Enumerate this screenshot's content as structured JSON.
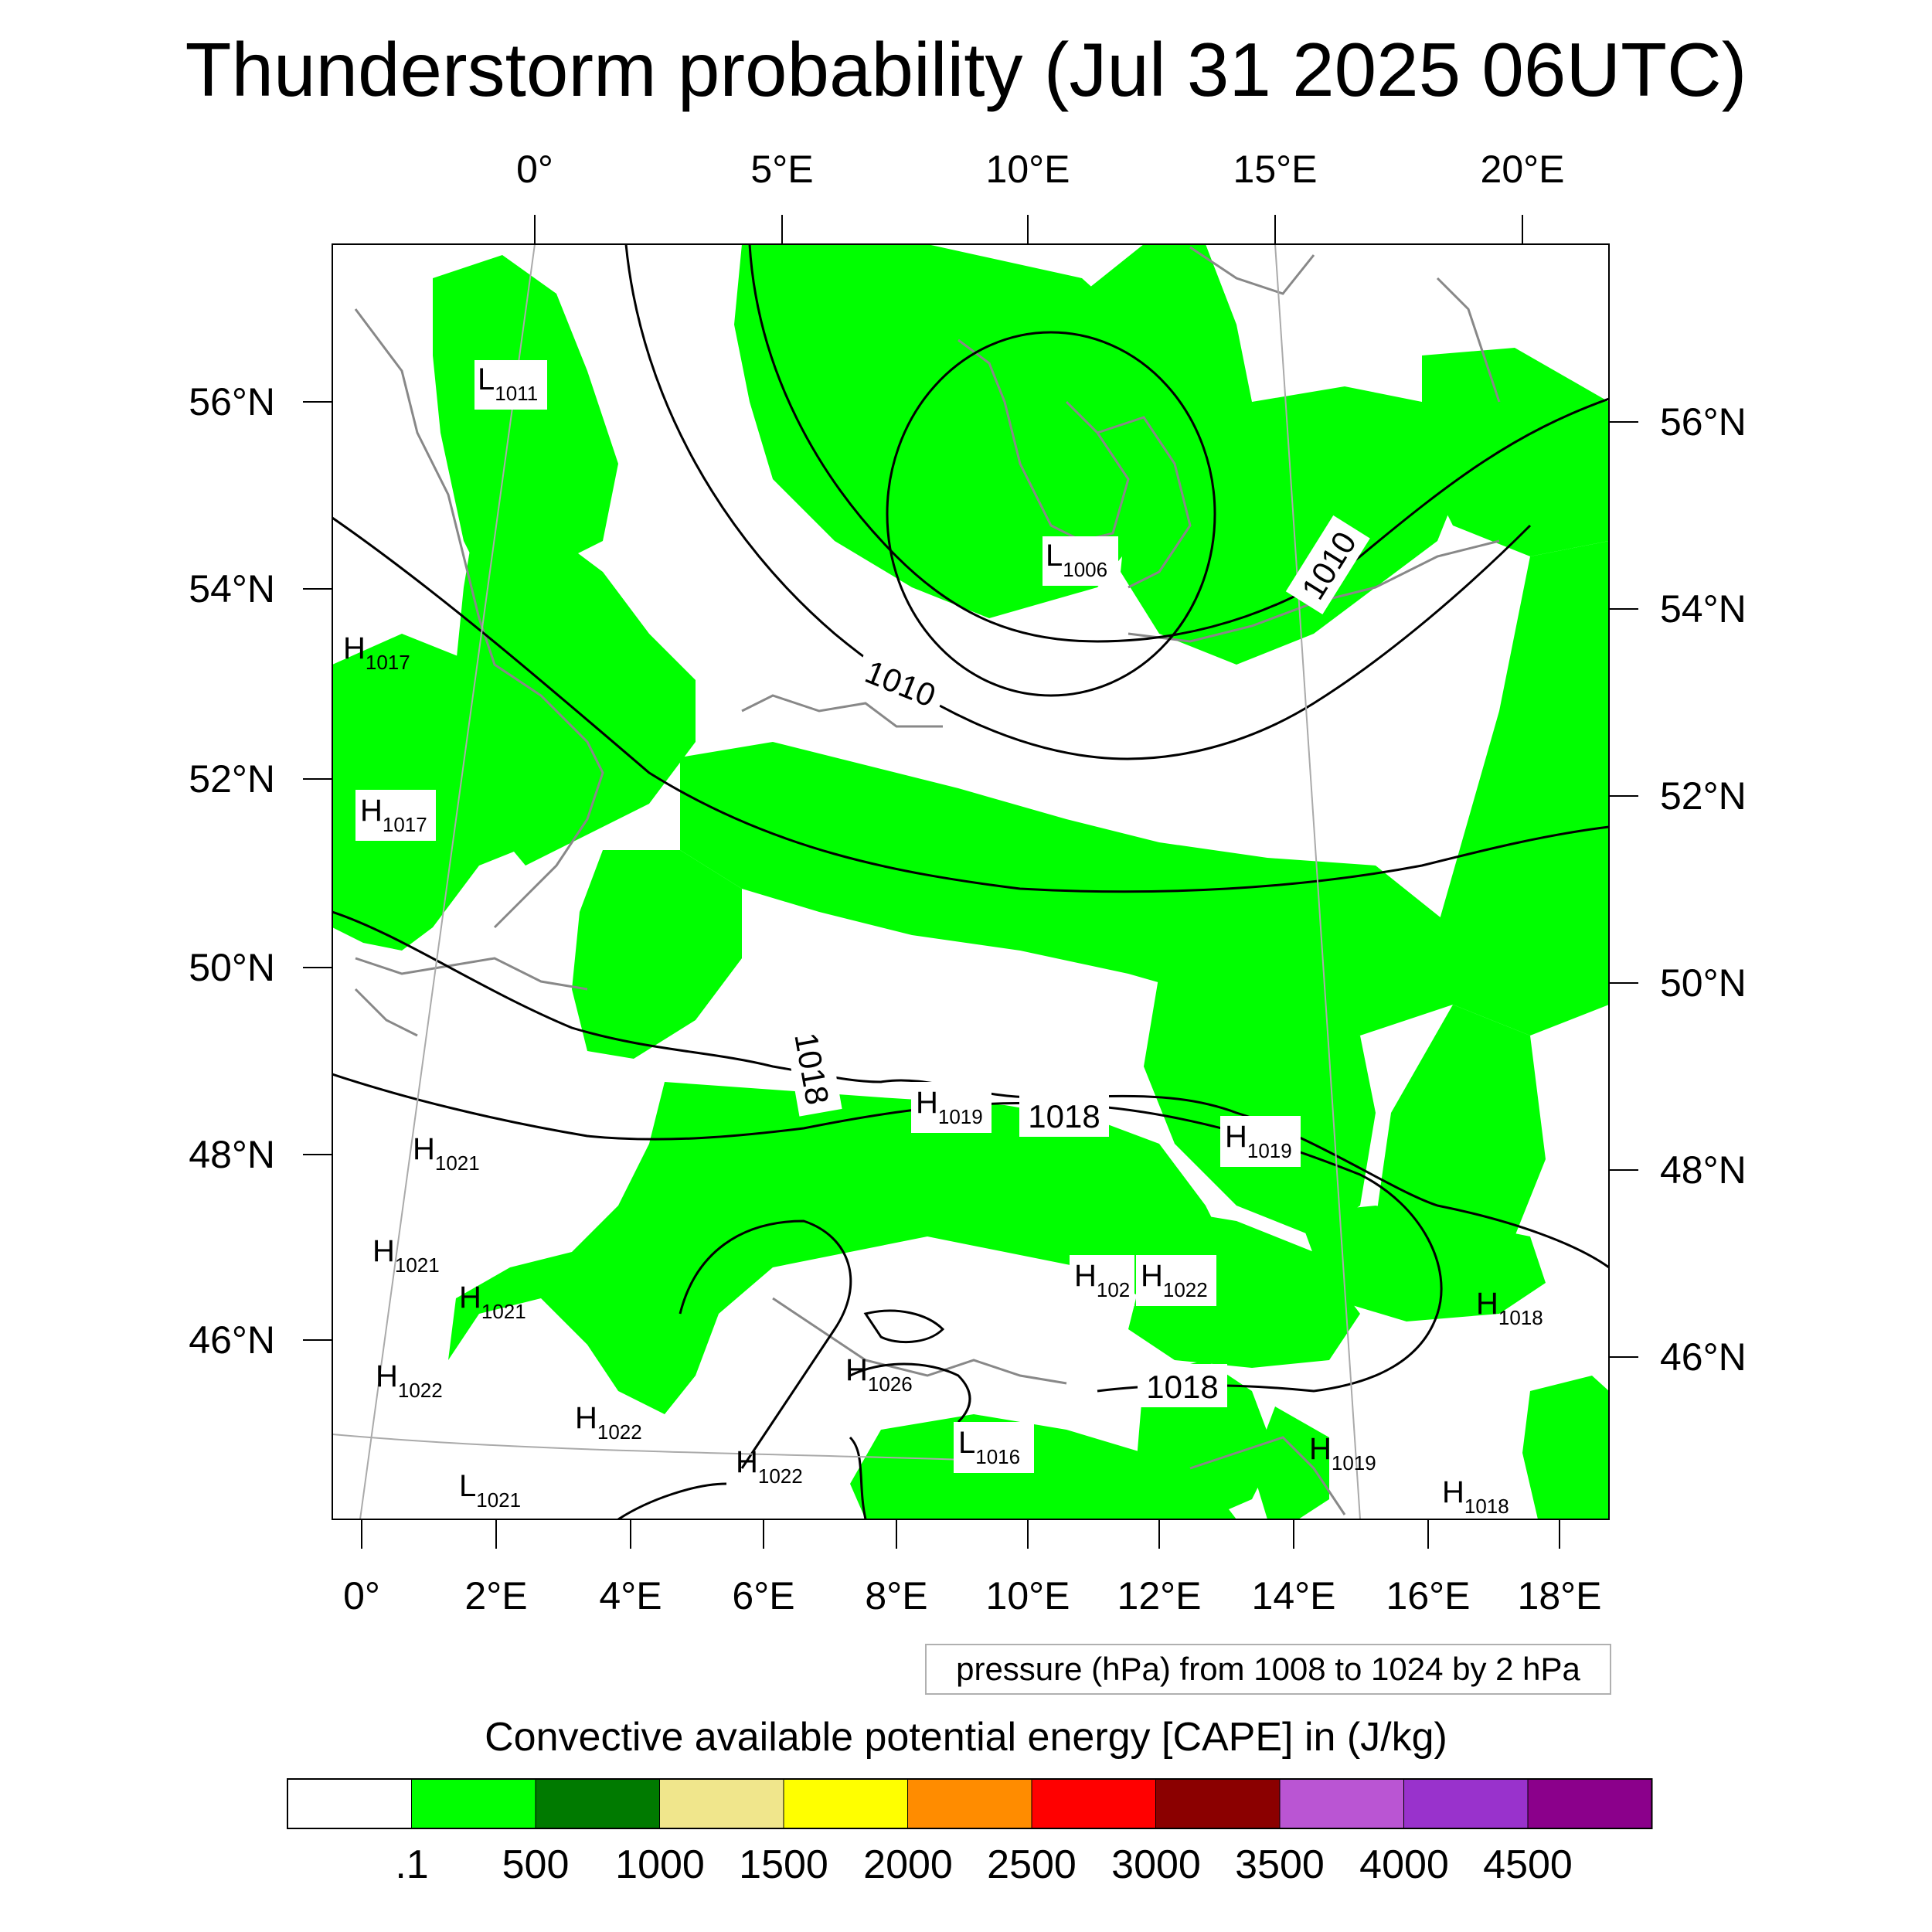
{
  "title": "Thunderstorm probability (Jul 31 2025 06UTC)",
  "map": {
    "top_lon_labels": [
      "0°",
      "5°E",
      "10°E",
      "15°E",
      "20°E"
    ],
    "bottom_lon_labels": [
      "0°",
      "2°E",
      "4°E",
      "6°E",
      "8°E",
      "10°E",
      "12°E",
      "14°E",
      "16°E",
      "18°E"
    ],
    "left_lat_labels": [
      "56°N",
      "54°N",
      "52°N",
      "50°N",
      "48°N",
      "46°N"
    ],
    "right_lat_labels": [
      "56°N",
      "54°N",
      "52°N",
      "50°N",
      "48°N",
      "46°N"
    ],
    "fill_color": "#00ff00",
    "coast_color": "#888888",
    "isobar_labels": [
      "1010",
      "1010",
      "1018",
      "1018",
      "1018"
    ],
    "pressure_centers": [
      {
        "kind": "L",
        "value": "1011"
      },
      {
        "kind": "L",
        "value": "1006"
      },
      {
        "kind": "H",
        "value": "1017"
      },
      {
        "kind": "H",
        "value": "1017"
      },
      {
        "kind": "H",
        "value": "1019"
      },
      {
        "kind": "H",
        "value": "1019"
      },
      {
        "kind": "H",
        "value": "1021"
      },
      {
        "kind": "H",
        "value": "1021"
      },
      {
        "kind": "H",
        "value": "1021"
      },
      {
        "kind": "H",
        "value": "102"
      },
      {
        "kind": "H",
        "value": "1022"
      },
      {
        "kind": "H",
        "value": "1022"
      },
      {
        "kind": "H",
        "value": "1022"
      },
      {
        "kind": "H",
        "value": "1022"
      },
      {
        "kind": "H",
        "value": "1026"
      },
      {
        "kind": "H",
        "value": "1018"
      },
      {
        "kind": "L",
        "value": "1016"
      },
      {
        "kind": "H",
        "value": "1019"
      },
      {
        "kind": "L",
        "value": "1021"
      },
      {
        "kind": "H",
        "value": "1018"
      }
    ]
  },
  "contour_note": "pressure (hPa) from 1008 to 1024 by 2 hPa",
  "colorbar": {
    "title": "Convective available potential energy [CAPE] in (J/kg)",
    "colors": [
      "#ffffff",
      "#00ff00",
      "#007a00",
      "#f0e68c",
      "#ffff00",
      "#ff8c00",
      "#ff0000",
      "#8b0000",
      "#ba55d3",
      "#9932cc",
      "#8b008b"
    ],
    "tick_labels": [
      ".1",
      "500",
      "1000",
      "1500",
      "2000",
      "2500",
      "3000",
      "3500",
      "4000",
      "4500"
    ]
  }
}
